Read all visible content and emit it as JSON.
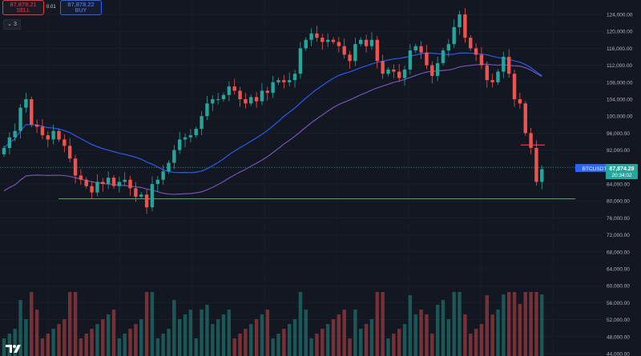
{
  "toolbar": {
    "sell_price": "87,878.21",
    "sell_label": "SELL",
    "spread": "0.01",
    "buy_price": "87,878.22",
    "buy_label": "BUY",
    "indicators_toggle": "3"
  },
  "price_axis": {
    "labels": [
      "124,000.00",
      "120,000.00",
      "116,000.00",
      "112,000.00",
      "108,000.00",
      "104,000.00",
      "100,000.00",
      "96,000.00",
      "92,000.00",
      "88,000.00",
      "84,000.00",
      "80,000.00",
      "76,000.00",
      "72,000.00",
      "68,000.00",
      "64,000.00",
      "60,000.00",
      "56,000.00",
      "52,000.00",
      "48,000.00",
      "44,000.00"
    ]
  },
  "price_tag": {
    "symbol": "BTCUSDT",
    "price": "87,874.29",
    "countdown": "20:34:02"
  },
  "colors": {
    "background": "#131722",
    "up": "#26a69a",
    "down": "#ef5350",
    "ma_fast": "#2962ff",
    "ma_slow": "#7e57c2",
    "support": "#4caf50",
    "resistance": "#f23645"
  },
  "chart_data": {
    "type": "candlestick",
    "y_range": [
      44000,
      126000
    ],
    "support_level": 80500,
    "resistance_level": 93200,
    "last_price": 87874.29,
    "closes": [
      92500,
      95000,
      96500,
      102000,
      104000,
      98000,
      97500,
      95500,
      94500,
      96500,
      94500,
      93000,
      90000,
      86000,
      85000,
      83500,
      82000,
      84500,
      84000,
      85500,
      83500,
      84500,
      85000,
      83000,
      81000,
      81500,
      78500,
      84000,
      85000,
      87000,
      89000,
      92000,
      94500,
      95000,
      95500,
      97000,
      100000,
      103000,
      104000,
      104000,
      105000,
      107000,
      106000,
      104000,
      103000,
      104500,
      103500,
      106000,
      105500,
      108000,
      108500,
      108000,
      108500,
      110000,
      116000,
      118000,
      119500,
      118500,
      117500,
      118000,
      117500,
      116500,
      114500,
      113000,
      117000,
      118000,
      116500,
      118000,
      113000,
      110000,
      111000,
      110500,
      109000,
      111000,
      115500,
      116500,
      115000,
      112000,
      109500,
      112500,
      115500,
      117000,
      121000,
      124000,
      118500,
      116000,
      114500,
      112000,
      108500,
      108000,
      110500,
      114000,
      110000,
      104000,
      103000,
      96000,
      92500,
      84500,
      87500
    ]
  },
  "logo_text": "TV"
}
